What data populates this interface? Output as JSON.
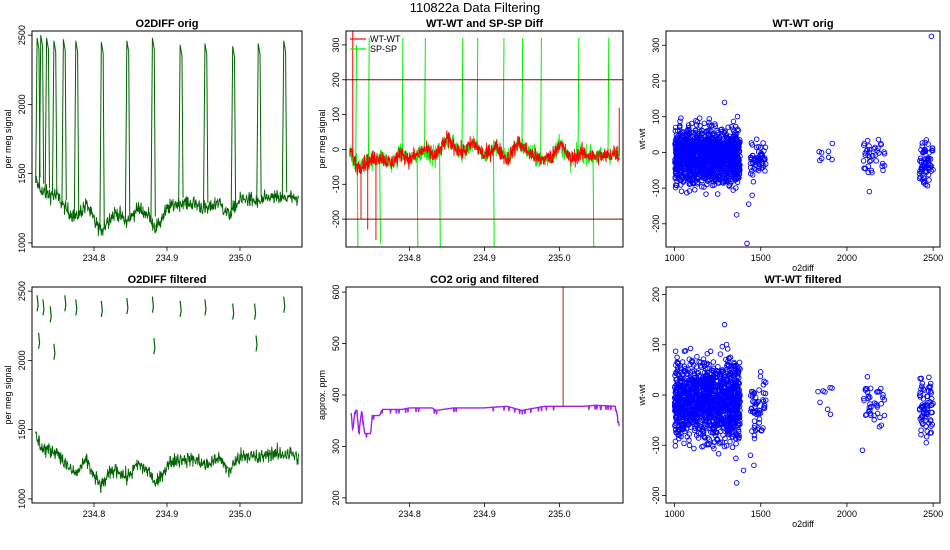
{
  "figure": {
    "title": "110822a   Data Filtering"
  },
  "colors": {
    "o2": "#006400",
    "wt": "#ff0000",
    "sp": "#00ee00",
    "co2": "#a020f0",
    "scatter": "#0000ff",
    "refline": "#8b0000",
    "co2spike": "#b22222"
  },
  "chart_data": [
    {
      "id": "o2diff-orig",
      "type": "line",
      "title": "O2DIFF orig",
      "xlabel": "",
      "ylabel": "per meg signal",
      "xlim": [
        234.715,
        235.085
      ],
      "ylim": [
        970,
        2530
      ],
      "xticks": [
        234.8,
        234.9,
        235.0
      ],
      "xtick_labels": [
        "234.8",
        "234.9",
        "235.0"
      ],
      "yticks": [
        1000,
        1500,
        2000,
        2500
      ],
      "ytick_labels": [
        "1000",
        "1500",
        "2000",
        "2500"
      ],
      "series": [
        {
          "name": "O2DIFF",
          "color": "#006400",
          "baseline": [
            [
              234.72,
              1450
            ],
            [
              234.73,
              1360
            ],
            [
              234.75,
              1340
            ],
            [
              234.76,
              1250
            ],
            [
              234.775,
              1180
            ],
            [
              234.79,
              1280
            ],
            [
              234.8,
              1160
            ],
            [
              234.81,
              1090
            ],
            [
              234.82,
              1170
            ],
            [
              234.83,
              1220
            ],
            [
              234.845,
              1150
            ],
            [
              234.86,
              1250
            ],
            [
              234.875,
              1200
            ],
            [
              234.885,
              1100
            ],
            [
              234.9,
              1240
            ],
            [
              234.91,
              1280
            ],
            [
              234.925,
              1290
            ],
            [
              234.94,
              1280
            ],
            [
              234.955,
              1240
            ],
            [
              234.97,
              1300
            ],
            [
              234.985,
              1200
            ],
            [
              235.0,
              1310
            ],
            [
              235.01,
              1320
            ],
            [
              235.025,
              1290
            ],
            [
              235.04,
              1330
            ],
            [
              235.055,
              1320
            ],
            [
              235.07,
              1330
            ],
            [
              235.08,
              1290
            ]
          ],
          "spikes": [
            [
              234.722,
              2480
            ],
            [
              234.727,
              2500
            ],
            [
              234.735,
              2480
            ],
            [
              234.745,
              2460
            ],
            [
              234.758,
              2470
            ],
            [
              234.775,
              2460
            ],
            [
              234.81,
              2450
            ],
            [
              234.845,
              2460
            ],
            [
              234.88,
              2480
            ],
            [
              234.918,
              2430
            ],
            [
              234.952,
              2440
            ],
            [
              234.99,
              2420
            ],
            [
              235.025,
              2440
            ],
            [
              235.06,
              2460
            ]
          ]
        }
      ]
    },
    {
      "id": "wt-sp-diff",
      "type": "line",
      "title": "WT-WT and SP-SP Diff",
      "xlabel": "",
      "ylabel": "per meg signal",
      "xlim": [
        234.715,
        235.085
      ],
      "ylim": [
        -280,
        340
      ],
      "xticks": [
        234.8,
        234.9,
        235.0
      ],
      "xtick_labels": [
        "234.8",
        "234.9",
        "235.0"
      ],
      "yticks": [
        -200,
        -100,
        0,
        100,
        200,
        300
      ],
      "ytick_labels": [
        "-200",
        "-100",
        "0",
        "100",
        "200",
        "300"
      ],
      "hlines": [
        200,
        -200
      ],
      "legend": {
        "position": "top-left",
        "entries": [
          "WT-WT",
          "SP-SP"
        ]
      },
      "series": [
        {
          "name": "WT-WT",
          "color": "#ff0000",
          "trend": [
            [
              234.72,
              0
            ],
            [
              234.73,
              -50
            ],
            [
              234.74,
              -40
            ],
            [
              234.76,
              -20
            ],
            [
              234.775,
              -40
            ],
            [
              234.79,
              -10
            ],
            [
              234.8,
              -30
            ],
            [
              234.82,
              0
            ],
            [
              234.835,
              -20
            ],
            [
              234.85,
              30
            ],
            [
              234.87,
              -10
            ],
            [
              234.885,
              20
            ],
            [
              234.9,
              -20
            ],
            [
              234.915,
              10
            ],
            [
              234.93,
              -30
            ],
            [
              234.945,
              20
            ],
            [
              234.96,
              -10
            ],
            [
              234.975,
              -30
            ],
            [
              234.99,
              -20
            ],
            [
              235.0,
              20
            ],
            [
              235.015,
              -30
            ],
            [
              235.03,
              -10
            ],
            [
              235.045,
              -20
            ],
            [
              235.06,
              -20
            ],
            [
              235.075,
              -10
            ],
            [
              235.08,
              -20
            ]
          ],
          "spikes": [
            [
              234.724,
              340
            ],
            [
              234.735,
              -200
            ],
            [
              234.744,
              -230
            ],
            [
              234.755,
              -260
            ],
            [
              235.08,
              120
            ]
          ]
        },
        {
          "name": "SP-SP",
          "color": "#00ee00",
          "spikes": [
            [
              234.728,
              300
            ],
            [
              234.73,
              -290
            ],
            [
              234.745,
              320
            ],
            [
              234.76,
              -270
            ],
            [
              234.79,
              320
            ],
            [
              234.81,
              -290
            ],
            [
              234.82,
              320
            ],
            [
              234.84,
              -290
            ],
            [
              234.87,
              320
            ],
            [
              234.89,
              320
            ],
            [
              234.912,
              -290
            ],
            [
              234.925,
              320
            ],
            [
              234.95,
              320
            ],
            [
              234.975,
              320
            ],
            [
              235.025,
              320
            ],
            [
              235.045,
              -290
            ],
            [
              235.065,
              320
            ]
          ]
        }
      ]
    },
    {
      "id": "wt-orig",
      "type": "scatter",
      "title": "WT-WT orig",
      "xlabel": "o2diff",
      "ylabel": "wt-wt",
      "xlim": [
        950,
        2540
      ],
      "ylim": [
        -265,
        340
      ],
      "xticks": [
        1000,
        1500,
        2000,
        2500
      ],
      "xtick_labels": [
        "1000",
        "1500",
        "2000",
        "2500"
      ],
      "yticks": [
        -200,
        -100,
        0,
        100,
        200,
        300
      ],
      "ytick_labels": [
        "-200",
        "-100",
        "0",
        "100",
        "200",
        "300"
      ],
      "clusters": [
        {
          "x": [
            1000,
            1380
          ],
          "y": [
            -80,
            60
          ],
          "n": 1300
        },
        {
          "x": [
            1440,
            1530
          ],
          "y": [
            -70,
            30
          ],
          "n": 60
        },
        {
          "x": [
            1830,
            1920
          ],
          "y": [
            -40,
            20
          ],
          "n": 8
        },
        {
          "x": [
            2090,
            2220
          ],
          "y": [
            -50,
            40
          ],
          "n": 40
        },
        {
          "x": [
            2420,
            2500
          ],
          "y": [
            -80,
            30
          ],
          "n": 70
        }
      ],
      "outliers": [
        [
          1290,
          140
        ],
        [
          2490,
          325
        ],
        [
          1430,
          -145
        ],
        [
          1420,
          -255
        ],
        [
          1360,
          -175
        ],
        [
          2130,
          -110
        ],
        [
          1450,
          -120
        ]
      ]
    },
    {
      "id": "o2diff-filtered",
      "type": "line",
      "title": "O2DIFF filtered",
      "xlabel": "",
      "ylabel": "per meg signal",
      "xlim": [
        234.715,
        235.085
      ],
      "ylim": [
        970,
        2530
      ],
      "xticks": [
        234.8,
        234.9,
        235.0
      ],
      "xtick_labels": [
        "234.8",
        "234.9",
        "235.0"
      ],
      "yticks": [
        1000,
        1500,
        2000,
        2500
      ],
      "ytick_labels": [
        "1000",
        "1500",
        "2000",
        "2500"
      ],
      "series": [
        {
          "name": "O2DIFF filtered",
          "color": "#006400",
          "baseline": [
            [
              234.72,
              1450
            ],
            [
              234.73,
              1360
            ],
            [
              234.75,
              1340
            ],
            [
              234.76,
              1250
            ],
            [
              234.775,
              1180
            ],
            [
              234.79,
              1280
            ],
            [
              234.8,
              1160
            ],
            [
              234.81,
              1090
            ],
            [
              234.82,
              1170
            ],
            [
              234.83,
              1220
            ],
            [
              234.845,
              1150
            ],
            [
              234.86,
              1250
            ],
            [
              234.875,
              1200
            ],
            [
              234.885,
              1100
            ],
            [
              234.9,
              1240
            ],
            [
              234.91,
              1280
            ],
            [
              234.925,
              1290
            ],
            [
              234.94,
              1280
            ],
            [
              234.955,
              1240
            ],
            [
              234.97,
              1300
            ],
            [
              234.985,
              1200
            ],
            [
              235.0,
              1310
            ],
            [
              235.01,
              1320
            ],
            [
              235.025,
              1290
            ],
            [
              235.04,
              1330
            ],
            [
              235.055,
              1320
            ],
            [
              235.07,
              1330
            ],
            [
              235.08,
              1290
            ]
          ],
          "fragments": [
            [
              234.722,
              2470
            ],
            [
              234.724,
              2200
            ],
            [
              234.73,
              2440
            ],
            [
              234.74,
              2390
            ],
            [
              234.745,
              2120
            ],
            [
              234.76,
              2470
            ],
            [
              234.775,
              2440
            ],
            [
              234.81,
              2430
            ],
            [
              234.845,
              2450
            ],
            [
              234.88,
              2460
            ],
            [
              234.882,
              2160
            ],
            [
              234.918,
              2430
            ],
            [
              234.952,
              2440
            ],
            [
              234.99,
              2410
            ],
            [
              235.02,
              2410
            ],
            [
              235.022,
              2180
            ],
            [
              235.06,
              2460
            ]
          ]
        }
      ]
    },
    {
      "id": "co2",
      "type": "line",
      "title": "CO2 orig and filtered",
      "xlabel": "",
      "ylabel": "approx. ppm",
      "xlim": [
        234.715,
        235.085
      ],
      "ylim": [
        190,
        610
      ],
      "xticks": [
        234.8,
        234.9,
        235.0
      ],
      "xtick_labels": [
        "234.8",
        "234.9",
        "235.0"
      ],
      "yticks": [
        200,
        300,
        400,
        500,
        600
      ],
      "ytick_labels": [
        "200",
        "300",
        "400",
        "500",
        "600"
      ],
      "series": [
        {
          "name": "CO2",
          "color": "#a020f0",
          "values": [
            [
              234.722,
              365
            ],
            [
              234.724,
              330
            ],
            [
              234.727,
              370
            ],
            [
              234.73,
              370
            ],
            [
              234.732,
              325
            ],
            [
              234.736,
              370
            ],
            [
              234.74,
              325
            ],
            [
              234.748,
              325
            ],
            [
              234.75,
              360
            ],
            [
              234.76,
              360
            ],
            [
              234.763,
              372
            ],
            [
              234.79,
              372
            ],
            [
              234.8,
              375
            ],
            [
              234.83,
              375
            ],
            [
              234.835,
              370
            ],
            [
              234.86,
              375
            ],
            [
              234.9,
              375
            ],
            [
              234.93,
              378
            ],
            [
              234.95,
              370
            ],
            [
              234.98,
              378
            ],
            [
              235.0,
              378
            ],
            [
              235.03,
              378
            ],
            [
              235.05,
              380
            ],
            [
              235.075,
              378
            ],
            [
              235.08,
              340
            ]
          ]
        },
        {
          "name": "CO2 orig spike",
          "color": "#b22222",
          "values": [
            [
              235.005,
              378
            ],
            [
              235.005,
              610
            ]
          ]
        }
      ]
    },
    {
      "id": "wt-filtered",
      "type": "scatter",
      "title": "WT-WT filtered",
      "xlabel": "o2diff",
      "ylabel": "wt-wt",
      "xlim": [
        950,
        2540
      ],
      "ylim": [
        -215,
        215
      ],
      "xticks": [
        1000,
        1500,
        2000,
        2500
      ],
      "xtick_labels": [
        "1000",
        "1500",
        "2000",
        "2500"
      ],
      "yticks": [
        -200,
        -100,
        0,
        100,
        200
      ],
      "ytick_labels": [
        "-200",
        "-100",
        "0",
        "100",
        "200"
      ],
      "clusters": [
        {
          "x": [
            1000,
            1380
          ],
          "y": [
            -80,
            60
          ],
          "n": 1300
        },
        {
          "x": [
            1440,
            1530
          ],
          "y": [
            -70,
            30
          ],
          "n": 60
        },
        {
          "x": [
            1830,
            1920
          ],
          "y": [
            -40,
            20
          ],
          "n": 8
        },
        {
          "x": [
            2090,
            2220
          ],
          "y": [
            -50,
            40
          ],
          "n": 40
        },
        {
          "x": [
            2420,
            2500
          ],
          "y": [
            -80,
            30
          ],
          "n": 70
        }
      ],
      "outliers": [
        [
          1290,
          140
        ],
        [
          1360,
          -175
        ],
        [
          2090,
          -110
        ],
        [
          1440,
          -120
        ],
        [
          1400,
          -150
        ],
        [
          2460,
          -95
        ],
        [
          1460,
          -140
        ]
      ]
    }
  ]
}
